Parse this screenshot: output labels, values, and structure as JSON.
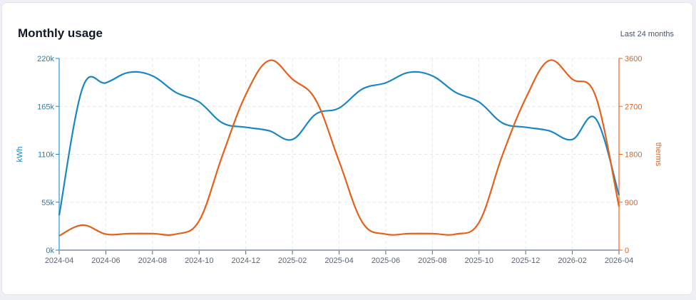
{
  "card": {
    "title": "Monthly usage",
    "range_label": "Last 24 months"
  },
  "colors": {
    "kwh": "#1a86c4",
    "kwh_axis": "#7cc0e4",
    "therms": "#e4611b",
    "therms_axis": "#f4a27a",
    "grid": "#e5e7eb",
    "x_axis": "#a0a8b8"
  },
  "chart_data": {
    "type": "line",
    "title": "Monthly usage",
    "subtitle": "Last 24 months",
    "xlabel": "",
    "x": [
      "2024-04",
      "2024-05",
      "2024-06",
      "2024-07",
      "2024-08",
      "2024-09",
      "2024-10",
      "2024-11",
      "2024-12",
      "2025-01",
      "2025-02",
      "2025-03",
      "2025-04",
      "2025-05",
      "2025-06",
      "2025-07",
      "2025-08",
      "2025-09",
      "2025-10",
      "2025-11",
      "2025-12",
      "2026-01",
      "2026-02",
      "2026-03",
      "2026-04"
    ],
    "x_tick_labels": [
      "2024-04",
      "2024-06",
      "2024-08",
      "2024-10",
      "2024-12",
      "2025-02",
      "2025-04",
      "2025-06",
      "2025-08",
      "2025-10",
      "2025-12",
      "2026-02",
      "2026-04"
    ],
    "series": [
      {
        "name": "kWh",
        "axis": "left",
        "values": [
          40000,
          186000,
          192000,
          204000,
          200000,
          181000,
          170000,
          146000,
          141000,
          137000,
          127000,
          156000,
          163000,
          185000,
          192000,
          204000,
          200000,
          181000,
          170000,
          146000,
          141000,
          137000,
          127000,
          151000,
          63000
        ]
      },
      {
        "name": "therms",
        "axis": "right",
        "values": [
          270,
          470,
          300,
          310,
          310,
          300,
          550,
          1780,
          2920,
          3560,
          3210,
          2820,
          1670,
          520,
          300,
          310,
          310,
          300,
          520,
          1780,
          2850,
          3560,
          3210,
          2890,
          820
        ]
      }
    ],
    "y_left": {
      "label": "kWh",
      "ylim": [
        0,
        220000
      ],
      "ticks": [
        0,
        55000,
        110000,
        165000,
        220000
      ],
      "tick_labels": [
        "0k",
        "55k",
        "110k",
        "165k",
        "220k"
      ]
    },
    "y_right": {
      "label": "therms",
      "ylim": [
        0,
        3600
      ],
      "ticks": [
        0,
        900,
        1800,
        2700,
        3600
      ],
      "tick_labels": [
        "0",
        "900",
        "1800",
        "2700",
        "3600"
      ]
    },
    "grid": true,
    "grid_style": "dashed",
    "legend": "none",
    "curve": "smooth"
  }
}
